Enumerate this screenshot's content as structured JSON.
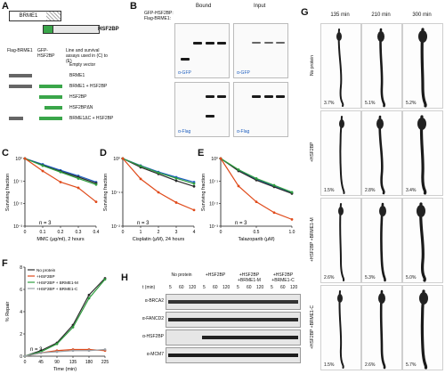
{
  "panels": {
    "A": "A",
    "B": "B",
    "C": "C",
    "D": "D",
    "E": "E",
    "F": "F",
    "G": "G",
    "H": "H"
  },
  "panel_a": {
    "brme1": "BRME1",
    "hsf2bp": "HSF2BP",
    "col_brme1": "Flag-BRME1",
    "col_hsf2bp": "GFP-HSF2BP",
    "col_desc": "Line and survival assays used in (C) to (E)",
    "rows": [
      "Empty vector",
      "BRME1",
      "BRME1 + HSF2BP",
      "HSF2BP",
      "HSF2BPΔN",
      "BRME1ΔC + HSF2BP"
    ]
  },
  "panel_b": {
    "bound": "Bound",
    "input": "Input",
    "row1": "GFP-HSF2BP:",
    "row2": "Flag-BRME1:",
    "ab_top": "α-GFP",
    "ab_bottom": "α-Flag"
  },
  "panel_g": {
    "times": [
      "135 min",
      "210 min",
      "300 min"
    ],
    "rows": [
      "No protein",
      "+HSF2BP",
      "+HSF2BP +BRME1-M",
      "+HSF2BP +BRME1-C"
    ],
    "percents": [
      [
        "3.7%",
        "5.1%",
        "5.2%"
      ],
      [
        "1.5%",
        "2.8%",
        "3.4%"
      ],
      [
        "2.6%",
        "5.3%",
        "5.0%"
      ],
      [
        "1.5%",
        "2.6%",
        "5.7%"
      ]
    ]
  },
  "panel_h": {
    "conditions": [
      "No protein",
      "+HSF2BP",
      "+HSF2BP +BRME1-M",
      "+HSF2BP +BRME1-C"
    ],
    "time_label": "t (min)",
    "times": [
      "5",
      "60",
      "120"
    ],
    "antibodies": [
      "α-BRCA2",
      "α-FANCD2",
      "α-HSF2BP",
      "α-MCM7"
    ]
  },
  "chart_data": [
    {
      "type": "line",
      "xlabel": "MMC (μg/ml), 2 hours",
      "ylabel": "Surviving fraction",
      "x": [
        0,
        0.1,
        0.2,
        0.3,
        0.4
      ],
      "xticks": [
        "0",
        "0.1",
        "0.2",
        "0.3",
        "0.4"
      ],
      "yscale": "log",
      "ylim": [
        0.001,
        1
      ],
      "yticks": [
        "10⁻³",
        "10⁻²",
        "10⁻¹",
        "10⁰"
      ],
      "annotation": "n = 3",
      "series": [
        {
          "color": "#1f5fbf",
          "values": [
            1,
            0.55,
            0.3,
            0.17,
            0.09
          ]
        },
        {
          "color": "#2a2a2a",
          "values": [
            1,
            0.5,
            0.27,
            0.15,
            0.08
          ]
        },
        {
          "color": "#2e9e3e",
          "values": [
            1,
            0.48,
            0.25,
            0.13,
            0.07
          ]
        },
        {
          "color": "#e04a1a",
          "values": [
            1,
            0.28,
            0.09,
            0.05,
            0.012
          ]
        }
      ]
    },
    {
      "type": "line",
      "xlabel": "Cisplatin (μM), 24 hours",
      "ylabel": "Surviving fraction",
      "x": [
        0,
        1,
        2,
        3,
        4
      ],
      "xticks": [
        "0",
        "1",
        "2",
        "3",
        "4"
      ],
      "yscale": "log",
      "ylim": [
        0.01,
        1
      ],
      "yticks": [
        "10⁻²",
        "10⁻¹",
        "10⁰"
      ],
      "annotation": "n = 3",
      "series": [
        {
          "color": "#1f5fbf",
          "values": [
            1,
            0.62,
            0.4,
            0.28,
            0.2
          ]
        },
        {
          "color": "#2a2a2a",
          "values": [
            1,
            0.55,
            0.35,
            0.22,
            0.15
          ]
        },
        {
          "color": "#2e9e3e",
          "values": [
            1,
            0.6,
            0.38,
            0.26,
            0.18
          ]
        },
        {
          "color": "#e04a1a",
          "values": [
            1,
            0.25,
            0.1,
            0.05,
            0.03
          ]
        }
      ]
    },
    {
      "type": "line",
      "xlabel": "Talazoparib (μM)",
      "ylabel": "Surviving fraction",
      "x": [
        0,
        0.25,
        0.5,
        0.75,
        1
      ],
      "xticks": [
        "0",
        "0.5",
        "1.0"
      ],
      "yscale": "log",
      "ylim": [
        0.001,
        1
      ],
      "yticks": [
        "10⁻³",
        "10⁻²",
        "10⁻¹",
        "10⁰"
      ],
      "annotation": "n = 3",
      "series": [
        {
          "color": "#1f5fbf",
          "values": [
            1,
            0.3,
            0.12,
            0.06,
            0.03
          ]
        },
        {
          "color": "#2a2a2a",
          "values": [
            1,
            0.28,
            0.11,
            0.055,
            0.028
          ]
        },
        {
          "color": "#2e9e3e",
          "values": [
            1,
            0.32,
            0.13,
            0.065,
            0.032
          ]
        },
        {
          "color": "#e04a1a",
          "values": [
            1,
            0.06,
            0.012,
            0.004,
            0.002
          ]
        }
      ]
    },
    {
      "type": "line",
      "xlabel": "Time (min)",
      "ylabel": "% Repair",
      "x": [
        0,
        45,
        90,
        135,
        180,
        225
      ],
      "xticks": [
        "0",
        "45",
        "90",
        "135",
        "180",
        "225"
      ],
      "ylim": [
        0,
        8
      ],
      "yticks": [
        "0",
        "2",
        "4",
        "6",
        "8"
      ],
      "annotation": "n = 3",
      "legend_position": "top-left",
      "series": [
        {
          "name": "No protein",
          "color": "#2a2a2a",
          "values": [
            0,
            0.5,
            1.2,
            2.8,
            5.5,
            7.0
          ]
        },
        {
          "name": "+HSF2BP",
          "color": "#e04a1a",
          "values": [
            0,
            0.3,
            0.5,
            0.6,
            0.6,
            0.5
          ]
        },
        {
          "name": "+HSF2BP + BRME1-M",
          "color": "#2e9e3e",
          "values": [
            0,
            0.4,
            1.1,
            2.6,
            5.2,
            6.9
          ]
        },
        {
          "name": "+HSF2BP + BRME1-C",
          "color": "#9aa0a6",
          "values": [
            0,
            0.3,
            0.4,
            0.5,
            0.5,
            0.6
          ]
        }
      ]
    }
  ]
}
